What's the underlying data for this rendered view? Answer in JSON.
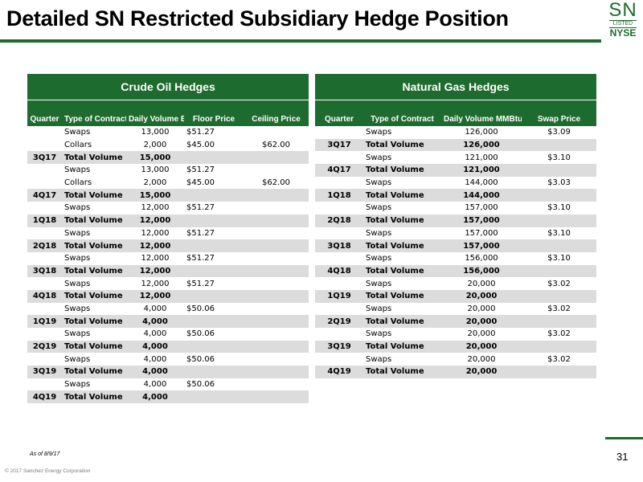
{
  "title": "Detailed SN Restricted Subsidiary Hedge Position",
  "logo": {
    "sn": "SN",
    "listed": "LISTED",
    "nyse": "NYSE"
  },
  "crude": {
    "caption": "Crude Oil Hedges",
    "headers": [
      "Quarter",
      "Type of Contract",
      "Daily Volume Bbls/d",
      "Floor Price",
      "Ceiling Price"
    ],
    "rows": [
      {
        "q": "",
        "type": "Swaps",
        "vol": "13,000",
        "floor": "$51.27",
        "ceil": ""
      },
      {
        "q": "",
        "type": "Collars",
        "vol": "2,000",
        "floor": "$45.00",
        "ceil": "$62.00"
      },
      {
        "q": "3Q17",
        "type": "Total Volume",
        "vol": "15,000",
        "floor": "",
        "ceil": ""
      },
      {
        "q": "",
        "type": "Swaps",
        "vol": "13,000",
        "floor": "$51.27",
        "ceil": ""
      },
      {
        "q": "",
        "type": "Collars",
        "vol": "2,000",
        "floor": "$45.00",
        "ceil": "$62.00"
      },
      {
        "q": "4Q17",
        "type": "Total Volume",
        "vol": "15,000",
        "floor": "",
        "ceil": ""
      },
      {
        "q": "",
        "type": "Swaps",
        "vol": "12,000",
        "floor": "$51.27",
        "ceil": ""
      },
      {
        "q": "1Q18",
        "type": "Total Volume",
        "vol": "12,000",
        "floor": "",
        "ceil": ""
      },
      {
        "q": "",
        "type": "Swaps",
        "vol": "12,000",
        "floor": "$51.27",
        "ceil": ""
      },
      {
        "q": "2Q18",
        "type": "Total Volume",
        "vol": "12,000",
        "floor": "",
        "ceil": ""
      },
      {
        "q": "",
        "type": "Swaps",
        "vol": "12,000",
        "floor": "$51.27",
        "ceil": ""
      },
      {
        "q": "3Q18",
        "type": "Total Volume",
        "vol": "12,000",
        "floor": "",
        "ceil": ""
      },
      {
        "q": "",
        "type": "Swaps",
        "vol": "12,000",
        "floor": "$51.27",
        "ceil": ""
      },
      {
        "q": "4Q18",
        "type": "Total Volume",
        "vol": "12,000",
        "floor": "",
        "ceil": ""
      },
      {
        "q": "",
        "type": "Swaps",
        "vol": "4,000",
        "floor": "$50.06",
        "ceil": ""
      },
      {
        "q": "1Q19",
        "type": "Total Volume",
        "vol": "4,000",
        "floor": "",
        "ceil": ""
      },
      {
        "q": "",
        "type": "Swaps",
        "vol": "4,000",
        "floor": "$50.06",
        "ceil": ""
      },
      {
        "q": "2Q19",
        "type": "Total Volume",
        "vol": "4,000",
        "floor": "",
        "ceil": ""
      },
      {
        "q": "",
        "type": "Swaps",
        "vol": "4,000",
        "floor": "$50.06",
        "ceil": ""
      },
      {
        "q": "3Q19",
        "type": "Total Volume",
        "vol": "4,000",
        "floor": "",
        "ceil": ""
      },
      {
        "q": "",
        "type": "Swaps",
        "vol": "4,000",
        "floor": "$50.06",
        "ceil": ""
      },
      {
        "q": "4Q19",
        "type": "Total Volume",
        "vol": "4,000",
        "floor": "",
        "ceil": ""
      }
    ]
  },
  "gas": {
    "caption": "Natural Gas Hedges",
    "headers": [
      "Quarter",
      "Type of Contract",
      "Daily Volume MMBtus/d",
      "Swap Price"
    ],
    "rows": [
      {
        "q": "",
        "type": "Swaps",
        "vol": "126,000",
        "price": "$3.09"
      },
      {
        "q": "3Q17",
        "type": "Total Volume",
        "vol": "126,000",
        "price": ""
      },
      {
        "q": "",
        "type": "Swaps",
        "vol": "121,000",
        "price": "$3.10"
      },
      {
        "q": "4Q17",
        "type": "Total Volume",
        "vol": "121,000",
        "price": ""
      },
      {
        "q": "",
        "type": "Swaps",
        "vol": "144,000",
        "price": "$3.03"
      },
      {
        "q": "1Q18",
        "type": "Total Volume",
        "vol": "144,000",
        "price": ""
      },
      {
        "q": "",
        "type": "Swaps",
        "vol": "157,000",
        "price": "$3.10"
      },
      {
        "q": "2Q18",
        "type": "Total Volume",
        "vol": "157,000",
        "price": ""
      },
      {
        "q": "",
        "type": "Swaps",
        "vol": "157,000",
        "price": "$3.10"
      },
      {
        "q": "3Q18",
        "type": "Total Volume",
        "vol": "157,000",
        "price": ""
      },
      {
        "q": "",
        "type": "Swaps",
        "vol": "156,000",
        "price": "$3.10"
      },
      {
        "q": "4Q18",
        "type": "Total Volume",
        "vol": "156,000",
        "price": ""
      },
      {
        "q": "",
        "type": "Swaps",
        "vol": "20,000",
        "price": "$3.02"
      },
      {
        "q": "1Q19",
        "type": "Total Volume",
        "vol": "20,000",
        "price": ""
      },
      {
        "q": "",
        "type": "Swaps",
        "vol": "20,000",
        "price": "$3.02"
      },
      {
        "q": "2Q19",
        "type": "Total Volume",
        "vol": "20,000",
        "price": ""
      },
      {
        "q": "",
        "type": "Swaps",
        "vol": "20,000",
        "price": "$3.02"
      },
      {
        "q": "3Q19",
        "type": "Total Volume",
        "vol": "20,000",
        "price": ""
      },
      {
        "q": "",
        "type": "Swaps",
        "vol": "20,000",
        "price": "$3.02"
      },
      {
        "q": "4Q19",
        "type": "Total Volume",
        "vol": "20,000",
        "price": ""
      }
    ]
  },
  "footer": {
    "as_of": "As of 8/9/17",
    "copyright": "© 2017 Sanchez Energy Corporation",
    "page": "31"
  },
  "colors": {
    "brand_green": "#1e6b2f",
    "total_row": "#dcdcdc"
  }
}
